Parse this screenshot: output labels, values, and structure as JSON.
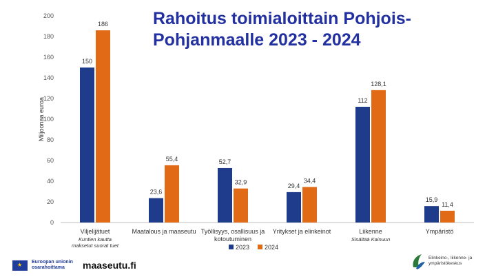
{
  "title_line1": "Rahoitus toimialoittain Pohjois-",
  "title_line2": "Pohjanmaalle 2023 - 2024",
  "colors": {
    "s2023": "#1f3c8c",
    "s2024": "#e06a16",
    "title": "#2330a0"
  },
  "chart_data": {
    "type": "bar",
    "title": "Rahoitus toimialoittain Pohjois-Pohjanmaalle 2023 - 2024",
    "ylabel": "Miljoonaa euroa",
    "xlabel": "",
    "ylim": [
      0,
      200
    ],
    "yticks": [
      0,
      20,
      40,
      60,
      80,
      100,
      120,
      140,
      160,
      180,
      200
    ],
    "grid": false,
    "legend": "bottom-center",
    "categories": [
      "Viljelijätuet",
      "Maatalous ja maaseutu",
      "Työllisyys, osallisuus ja kotoutuminen",
      "Yritykset ja elinkeinot",
      "Liikenne",
      "Ympäristö"
    ],
    "category_lines": [
      [
        "Viljelijätuet"
      ],
      [
        "Maatalous ja maaseutu"
      ],
      [
        "Työllisyys, osallisuus ja",
        "kotoutuminen"
      ],
      [
        "Yritykset ja elinkeinot"
      ],
      [
        "Liikenne"
      ],
      [
        "Ympäristö"
      ]
    ],
    "category_notes": [
      [
        "Kuntien kautta",
        "maksetut suorat tuet"
      ],
      [],
      [],
      [],
      [
        "Sisältää Kainuun"
      ],
      []
    ],
    "series": [
      {
        "name": "2023",
        "values": [
          150,
          23.6,
          52.7,
          29.4,
          112,
          15.9
        ],
        "labels": [
          "150",
          "23,6",
          "52,7",
          "29,4",
          "112",
          "15,9"
        ]
      },
      {
        "name": "2024",
        "values": [
          186,
          55.4,
          32.9,
          34.4,
          128.1,
          11.4
        ],
        "labels": [
          "186",
          "55,4",
          "32,9",
          "34,4",
          "128,1",
          "11,4"
        ]
      }
    ]
  },
  "footer": {
    "eu_text": "Euroopan unionin osarahoittama",
    "maaseutu": "maaseutu.fi",
    "ely_text": "Elinkeino-, liikenne- ja ympäristökeskus"
  }
}
